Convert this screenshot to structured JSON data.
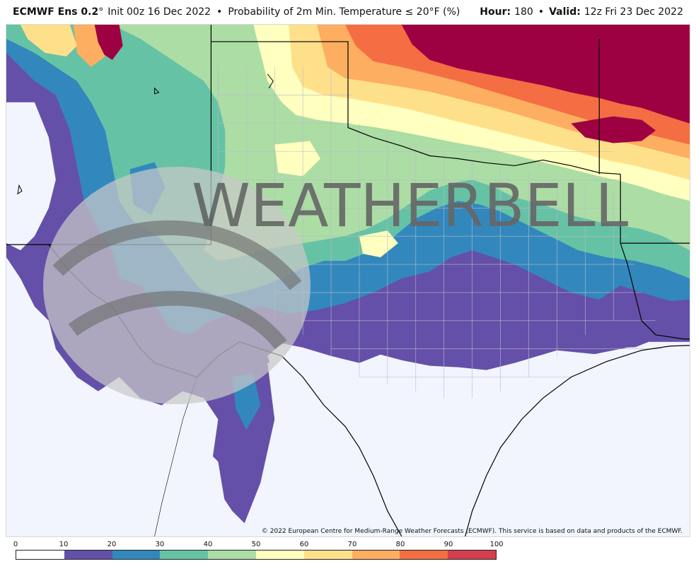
{
  "header": {
    "model": "ECMWF Ens 0.2",
    "degree_symbol": "°",
    "init": "Init 00z 16 Dec 2022",
    "bullet": "•",
    "product": "Probability of 2m Min. Temperature ≤ 20°F (%)",
    "hour_label": "Hour:",
    "hour_value": "180",
    "valid_label": "Valid:",
    "valid_value": "12z Fri 23 Dec 2022"
  },
  "map": {
    "background_color": "#f2f5fe",
    "watermark_text": "WEATHERBELL",
    "copyright": "© 2022 European Centre for Medium-Range Weather Forecasts (ECMWF). This service is based on data and products of the ECMWF."
  },
  "legend": {
    "ticks": [
      "0",
      "10",
      "20",
      "30",
      "40",
      "50",
      "60",
      "70",
      "80",
      "90",
      "100"
    ],
    "colors": [
      "#ffffff",
      "#6450a8",
      "#3288bd",
      "#66c2a5",
      "#abdda4",
      "#ffffbf",
      "#fee08b",
      "#fdae61",
      "#f46d43",
      "#d53e4f",
      "#9e0142"
    ]
  }
}
